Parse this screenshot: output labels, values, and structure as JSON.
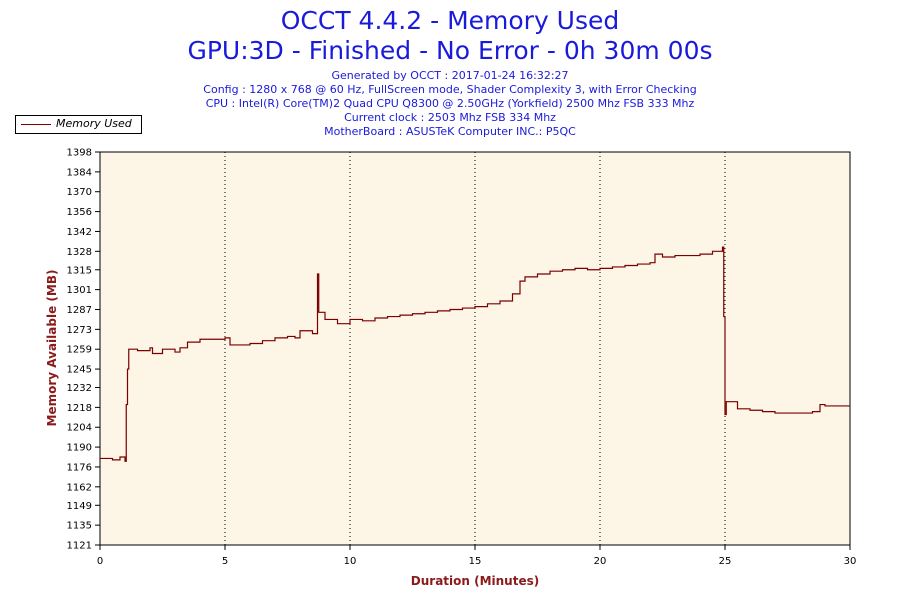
{
  "header": {
    "title": "OCCT 4.4.2 - Memory Used",
    "subtitle": "GPU:3D - Finished - No Error - 0h 30m 00s",
    "info_lines": [
      "Generated by OCCT : 2017-01-24 16:32:27",
      "Config : 1280 x 768 @ 60 Hz, FullScreen mode, Shader Complexity 3, with Error Checking",
      "CPU : Intel(R) Core(TM)2 Quad CPU Q8300 @ 2.50GHz (Yorkfield) 2500 Mhz FSB 333 Mhz",
      "Current clock : 2503 Mhz FSB 334 Mhz",
      "MotherBoard : ASUSTeK Computer INC.: P5QC"
    ]
  },
  "legend": {
    "label": "Memory Used",
    "placement": "top-left"
  },
  "colors": {
    "series": "#7a0000",
    "plot_bg": "#fdf5e6",
    "title": "#1a1adb",
    "axis_label": "#8b1a1a"
  },
  "chart_data": {
    "type": "line",
    "xlabel": "Duration (Minutes)",
    "ylabel": "Memory Available (MB)",
    "xlim": [
      0,
      30
    ],
    "ylim": [
      1121,
      1398
    ],
    "xticks": [
      0,
      5,
      10,
      15,
      20,
      25,
      30
    ],
    "yticks": [
      1121,
      1135,
      1149,
      1162,
      1176,
      1190,
      1204,
      1218,
      1232,
      1245,
      1259,
      1273,
      1287,
      1301,
      1315,
      1328,
      1342,
      1356,
      1370,
      1384,
      1398
    ],
    "grid": {
      "vertical_dotted": true,
      "horizontal": false
    },
    "series": [
      {
        "name": "Memory Used",
        "x": [
          0,
          0.5,
          0.8,
          1.0,
          1.05,
          1.1,
          1.15,
          1.25,
          1.5,
          2.0,
          2.1,
          2.5,
          3.0,
          3.2,
          3.5,
          4.0,
          4.5,
          5.0,
          5.2,
          5.5,
          6.0,
          6.5,
          7.0,
          7.5,
          7.8,
          8.0,
          8.5,
          8.65,
          8.7,
          8.75,
          9.0,
          9.5,
          10.0,
          10.5,
          11.0,
          11.5,
          12.0,
          12.5,
          13.0,
          13.5,
          14.0,
          14.5,
          15.0,
          15.5,
          16.0,
          16.5,
          16.8,
          17.0,
          17.5,
          18.0,
          18.5,
          19.0,
          19.5,
          20.0,
          20.5,
          21.0,
          21.5,
          22.0,
          22.2,
          22.5,
          23.0,
          23.5,
          24.0,
          24.5,
          24.9,
          24.95,
          25.0,
          25.05,
          25.2,
          25.5,
          26.0,
          26.5,
          27.0,
          27.5,
          28.0,
          28.5,
          28.8,
          29.0,
          29.5,
          30.0
        ],
        "values": [
          1182,
          1181,
          1183,
          1180,
          1220,
          1245,
          1259,
          1259,
          1258,
          1260,
          1256,
          1259,
          1257,
          1260,
          1264,
          1266,
          1266,
          1267,
          1262,
          1262,
          1263,
          1265,
          1267,
          1268,
          1267,
          1272,
          1270,
          1270,
          1312,
          1285,
          1280,
          1277,
          1280,
          1279,
          1281,
          1282,
          1283,
          1284,
          1285,
          1286,
          1287,
          1288,
          1289,
          1291,
          1293,
          1298,
          1307,
          1310,
          1312,
          1314,
          1315,
          1316,
          1315,
          1316,
          1317,
          1318,
          1319,
          1320,
          1326,
          1324,
          1325,
          1325,
          1326,
          1328,
          1331,
          1282,
          1213,
          1222,
          1222,
          1217,
          1216,
          1215,
          1214,
          1214,
          1214,
          1215,
          1220,
          1219,
          1219,
          1219
        ]
      }
    ]
  }
}
